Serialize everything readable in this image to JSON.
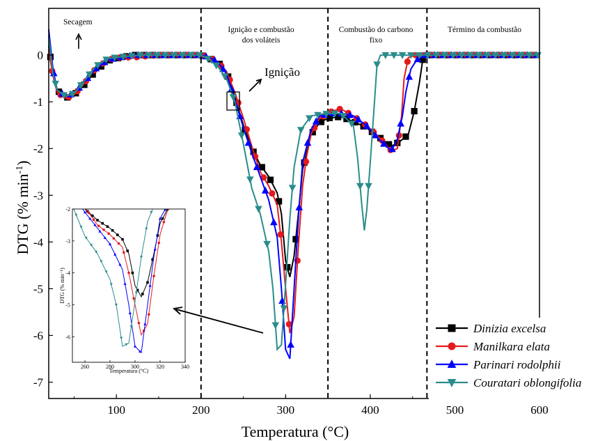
{
  "chart_data": {
    "type": "line",
    "xlabel": "Temperatura (°C)",
    "ylabel": "DTG (% min⁻¹)",
    "ylabel_main": "DTG (% min",
    "ylabel_sup": "-1",
    "ylabel_end": ")",
    "xlim": [
      20,
      600
    ],
    "ylim": [
      -7.35,
      1.0
    ],
    "xticks": [
      100,
      200,
      300,
      400,
      500,
      600
    ],
    "xtick_labels": [
      "100",
      "200",
      "300",
      "400",
      "500",
      "600"
    ],
    "yticks": [
      0,
      -1,
      -2,
      -3,
      -4,
      -5,
      -6,
      -7
    ],
    "ytick_labels": [
      "0",
      "-1",
      "-2",
      "-3",
      "-4",
      "-5",
      "-6",
      "-7"
    ],
    "vlines": [
      200,
      350,
      467
    ],
    "region_labels": [
      "Secagem",
      "Ignição e combustão",
      "dos voláteis",
      "Combustão do carbono",
      "fixo",
      "Término da combustão"
    ],
    "annotation_ignicao": "Ignição",
    "legend_position": "bottom-right",
    "series": [
      {
        "name": "Dinizia excelsa",
        "color": "#000000",
        "marker": "square",
        "points": [
          [
            20,
            0.2
          ],
          [
            25,
            -0.4
          ],
          [
            30,
            -0.75
          ],
          [
            40,
            -0.92
          ],
          [
            50,
            -0.85
          ],
          [
            60,
            -0.68
          ],
          [
            75,
            -0.35
          ],
          [
            90,
            -0.12
          ],
          [
            105,
            -0.05
          ],
          [
            120,
            0.0
          ],
          [
            150,
            0.0
          ],
          [
            180,
            0.0
          ],
          [
            200,
            0.0
          ],
          [
            210,
            -0.07
          ],
          [
            220,
            -0.15
          ],
          [
            230,
            -0.35
          ],
          [
            240,
            -0.9
          ],
          [
            250,
            -1.5
          ],
          [
            260,
            -2.0
          ],
          [
            270,
            -2.35
          ],
          [
            280,
            -2.6
          ],
          [
            290,
            -2.95
          ],
          [
            295,
            -3.4
          ],
          [
            300,
            -4.4
          ],
          [
            305,
            -4.75
          ],
          [
            310,
            -4.3
          ],
          [
            315,
            -3.4
          ],
          [
            320,
            -2.45
          ],
          [
            330,
            -1.7
          ],
          [
            340,
            -1.45
          ],
          [
            350,
            -1.35
          ],
          [
            365,
            -1.32
          ],
          [
            380,
            -1.42
          ],
          [
            395,
            -1.55
          ],
          [
            410,
            -1.75
          ],
          [
            425,
            -1.95
          ],
          [
            435,
            -1.85
          ],
          [
            445,
            -1.7
          ],
          [
            452,
            -1.2
          ],
          [
            458,
            -0.6
          ],
          [
            462,
            -0.1
          ],
          [
            470,
            0.0
          ],
          [
            600,
            0.0
          ]
        ]
      },
      {
        "name": "Manilkara elata",
        "color": "#e41a1c",
        "marker": "circle",
        "points": [
          [
            20,
            0.1
          ],
          [
            25,
            -0.45
          ],
          [
            30,
            -0.8
          ],
          [
            40,
            -0.93
          ],
          [
            50,
            -0.85
          ],
          [
            60,
            -0.65
          ],
          [
            75,
            -0.3
          ],
          [
            90,
            -0.1
          ],
          [
            105,
            -0.05
          ],
          [
            120,
            -0.05
          ],
          [
            150,
            0.0
          ],
          [
            180,
            0.0
          ],
          [
            200,
            0.0
          ],
          [
            210,
            -0.05
          ],
          [
            220,
            -0.15
          ],
          [
            230,
            -0.35
          ],
          [
            240,
            -0.8
          ],
          [
            250,
            -1.35
          ],
          [
            260,
            -1.95
          ],
          [
            270,
            -2.5
          ],
          [
            280,
            -2.8
          ],
          [
            290,
            -3.2
          ],
          [
            295,
            -4.0
          ],
          [
            300,
            -5.0
          ],
          [
            305,
            -5.95
          ],
          [
            310,
            -5.6
          ],
          [
            315,
            -4.1
          ],
          [
            320,
            -2.8
          ],
          [
            325,
            -2.15
          ],
          [
            330,
            -1.7
          ],
          [
            340,
            -1.35
          ],
          [
            355,
            -1.2
          ],
          [
            365,
            -1.15
          ],
          [
            380,
            -1.3
          ],
          [
            395,
            -1.5
          ],
          [
            410,
            -1.75
          ],
          [
            425,
            -2.05
          ],
          [
            432,
            -2.0
          ],
          [
            437,
            -1.3
          ],
          [
            440,
            -0.5
          ],
          [
            445,
            -0.05
          ],
          [
            455,
            0.0
          ],
          [
            600,
            0.0
          ]
        ]
      },
      {
        "name": "Parinari rodolphii",
        "color": "#0000ff",
        "marker": "triangle-up",
        "points": [
          [
            20,
            0.55
          ],
          [
            25,
            -0.3
          ],
          [
            30,
            -0.75
          ],
          [
            40,
            -0.88
          ],
          [
            50,
            -0.82
          ],
          [
            60,
            -0.62
          ],
          [
            75,
            -0.3
          ],
          [
            90,
            -0.1
          ],
          [
            105,
            -0.05
          ],
          [
            120,
            0.0
          ],
          [
            150,
            0.0
          ],
          [
            180,
            0.0
          ],
          [
            200,
            0.0
          ],
          [
            210,
            -0.05
          ],
          [
            220,
            -0.15
          ],
          [
            230,
            -0.4
          ],
          [
            240,
            -0.95
          ],
          [
            250,
            -1.55
          ],
          [
            260,
            -2.1
          ],
          [
            270,
            -2.6
          ],
          [
            280,
            -3.1
          ],
          [
            290,
            -3.9
          ],
          [
            295,
            -5.0
          ],
          [
            300,
            -6.3
          ],
          [
            305,
            -6.5
          ],
          [
            310,
            -5.0
          ],
          [
            315,
            -3.5
          ],
          [
            320,
            -2.3
          ],
          [
            330,
            -1.6
          ],
          [
            340,
            -1.3
          ],
          [
            355,
            -1.25
          ],
          [
            365,
            -1.25
          ],
          [
            380,
            -1.3
          ],
          [
            395,
            -1.5
          ],
          [
            410,
            -1.8
          ],
          [
            425,
            -2.05
          ],
          [
            432,
            -1.8
          ],
          [
            438,
            -1.3
          ],
          [
            442,
            -0.8
          ],
          [
            448,
            -0.3
          ],
          [
            455,
            -0.1
          ],
          [
            465,
            0.0
          ],
          [
            600,
            0.0
          ]
        ]
      },
      {
        "name": "Couratari oblongifolia",
        "color": "#2a8c8c",
        "marker": "triangle-down",
        "points": [
          [
            20,
            0.4
          ],
          [
            25,
            -0.4
          ],
          [
            30,
            -0.75
          ],
          [
            40,
            -0.88
          ],
          [
            50,
            -0.82
          ],
          [
            60,
            -0.6
          ],
          [
            75,
            -0.25
          ],
          [
            90,
            -0.07
          ],
          [
            110,
            -0.03
          ],
          [
            130,
            0.0
          ],
          [
            150,
            0.0
          ],
          [
            180,
            0.0
          ],
          [
            200,
            0.0
          ],
          [
            210,
            -0.1
          ],
          [
            220,
            -0.25
          ],
          [
            230,
            -0.5
          ],
          [
            240,
            -1.0
          ],
          [
            250,
            -1.9
          ],
          [
            260,
            -2.85
          ],
          [
            270,
            -3.4
          ],
          [
            280,
            -4.2
          ],
          [
            285,
            -5.0
          ],
          [
            290,
            -6.3
          ],
          [
            295,
            -6.2
          ],
          [
            300,
            -4.9
          ],
          [
            305,
            -3.5
          ],
          [
            310,
            -2.4
          ],
          [
            318,
            -1.6
          ],
          [
            330,
            -1.3
          ],
          [
            350,
            -1.25
          ],
          [
            365,
            -1.25
          ],
          [
            380,
            -1.5
          ],
          [
            385,
            -2.2
          ],
          [
            390,
            -3.2
          ],
          [
            393,
            -3.75
          ],
          [
            396,
            -3.3
          ],
          [
            400,
            -2.3
          ],
          [
            405,
            -1.0
          ],
          [
            408,
            -0.2
          ],
          [
            412,
            0.0
          ],
          [
            600,
            0.0
          ]
        ]
      }
    ],
    "inset": {
      "xlim": [
        250,
        340
      ],
      "ylim": [
        -6.8,
        -2.0
      ],
      "xticks": [
        260,
        280,
        300,
        320,
        340
      ],
      "xtick_labels": [
        "260",
        "280",
        "300",
        "320",
        "340"
      ],
      "yticks": [
        -2,
        -3,
        -4,
        -5,
        -6
      ],
      "ytick_labels": [
        "-2",
        "-3",
        "-4",
        "-5",
        "-6"
      ],
      "xlabel": "Temperatura (°C)",
      "ylabel": "DTG (% min⁻¹)"
    }
  }
}
